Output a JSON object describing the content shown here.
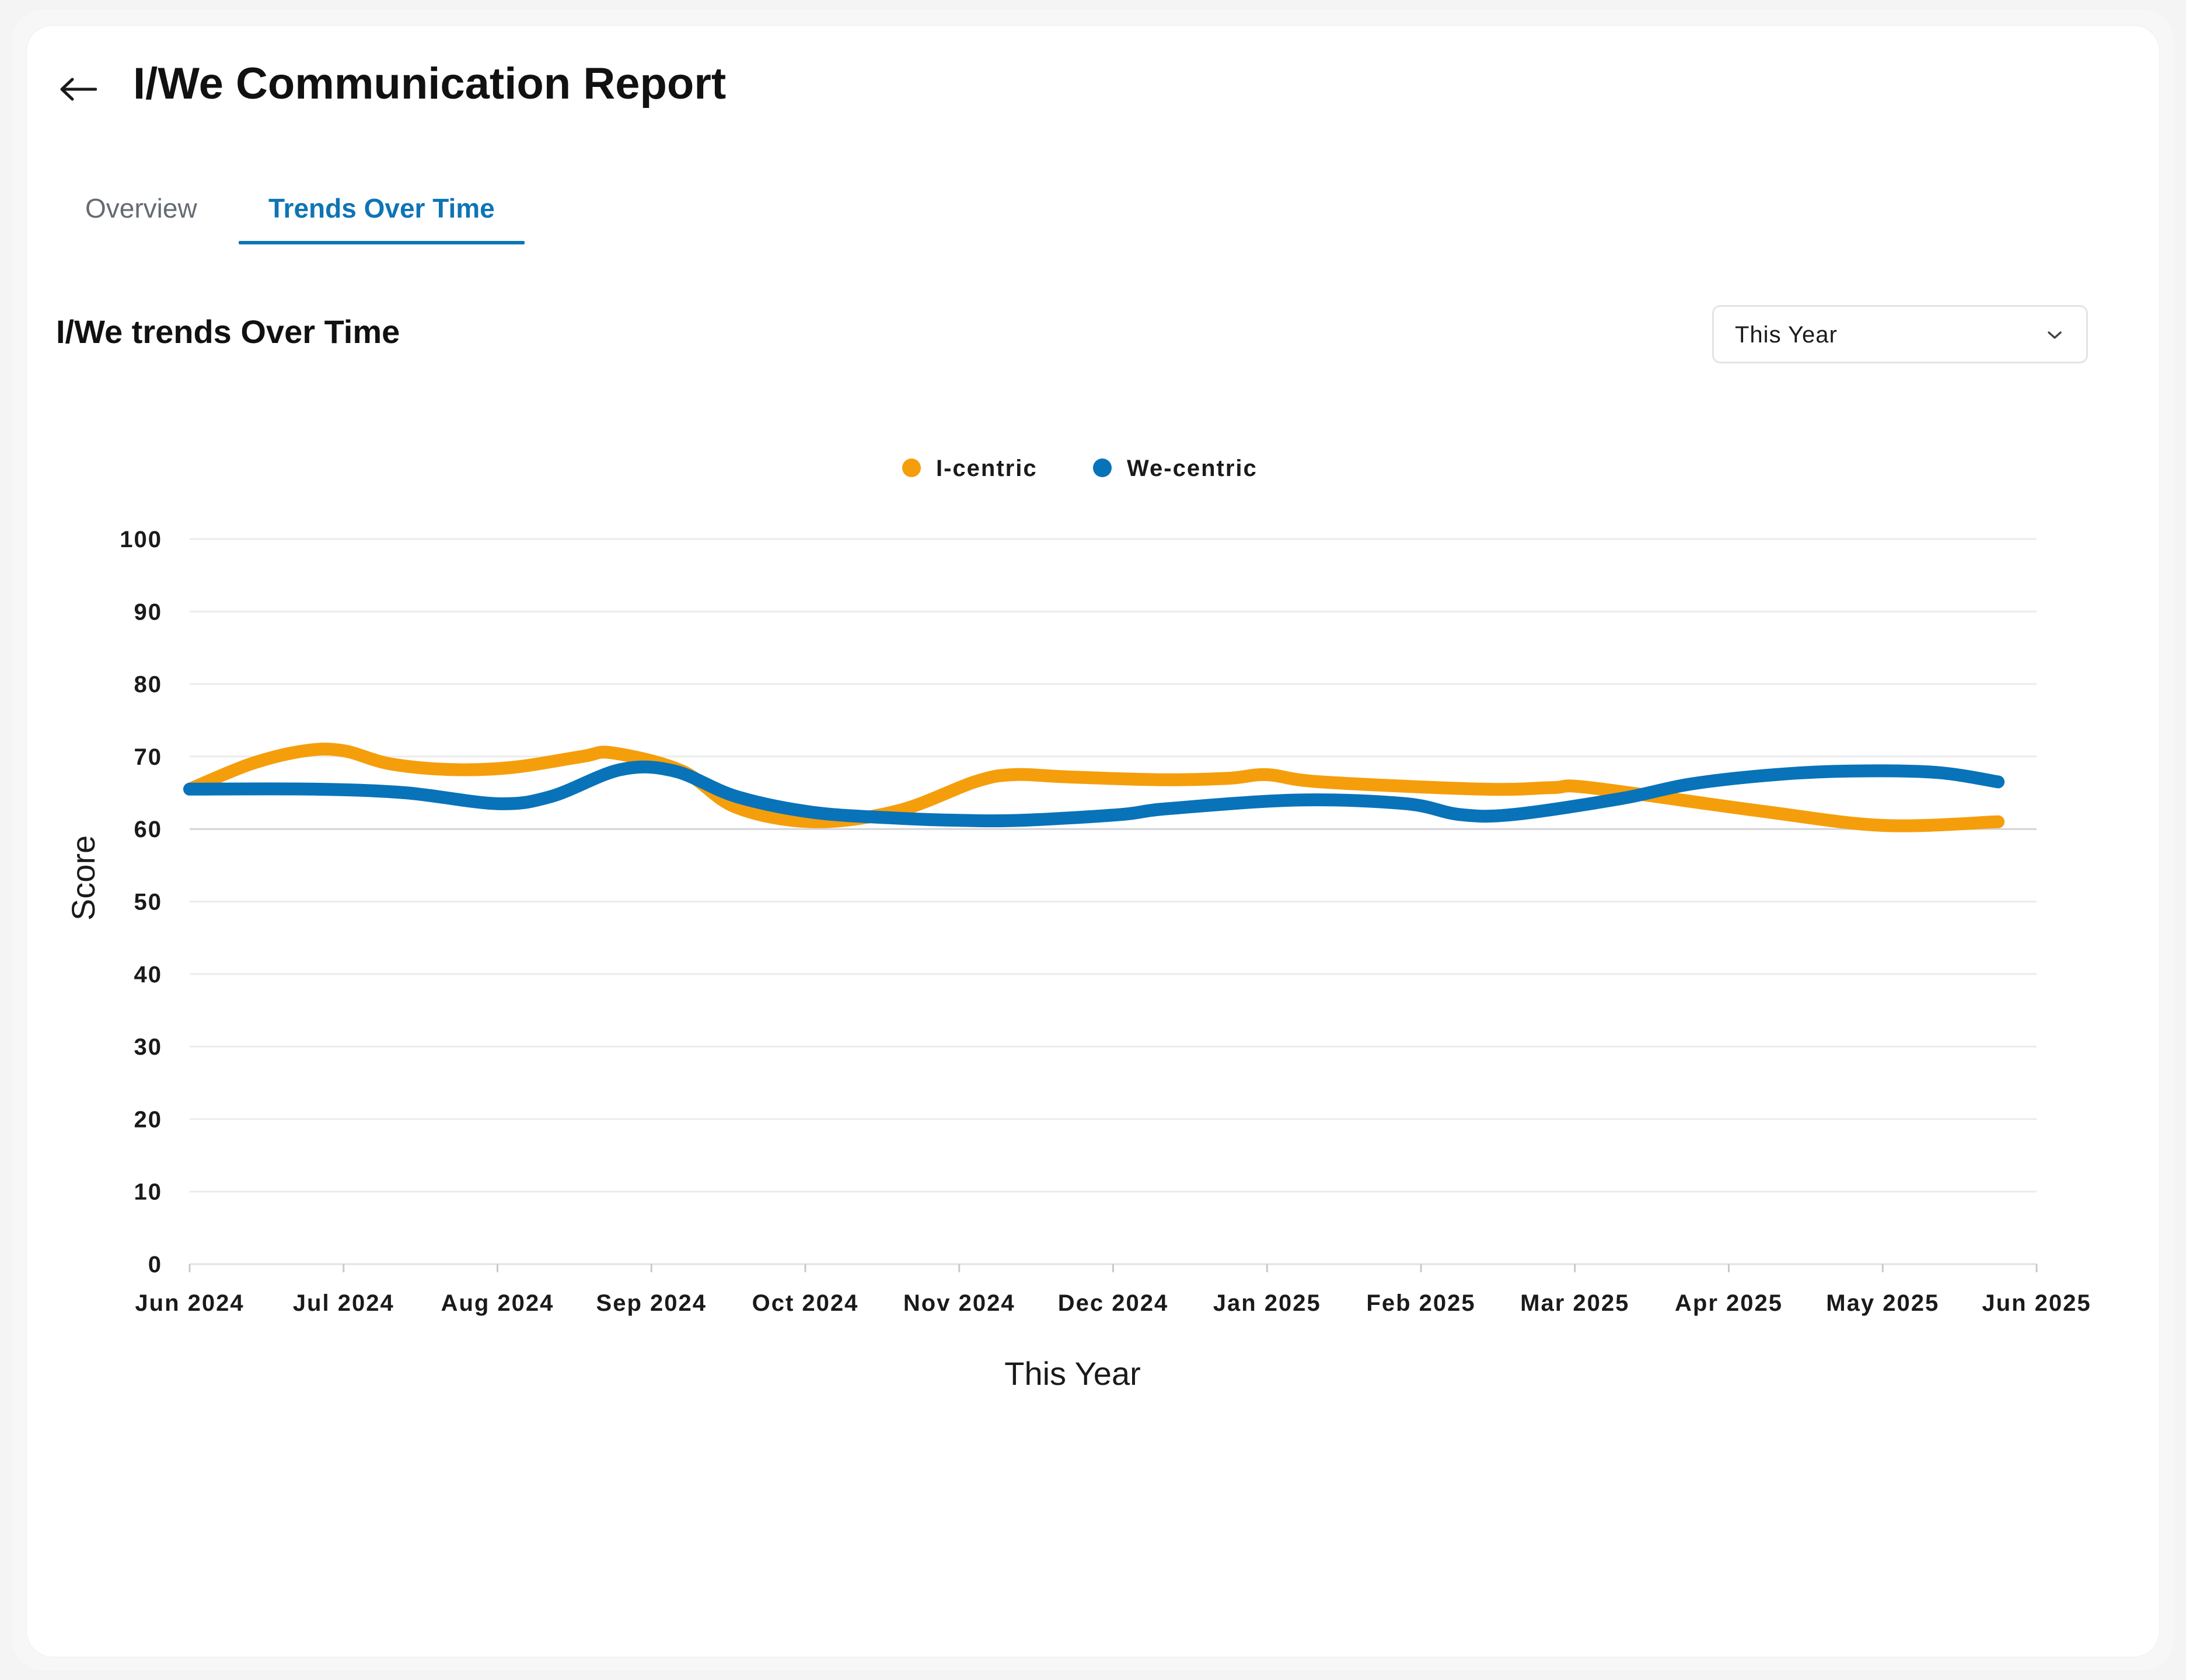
{
  "header": {
    "title": "I/We Communication Report",
    "back_icon": "arrow-left-icon"
  },
  "tabs": [
    {
      "label": "Overview",
      "active": false
    },
    {
      "label": "Trends Over Time",
      "active": true
    }
  ],
  "section": {
    "title": "I/We trends Over Time",
    "period_select": {
      "value": "This Year",
      "icon": "chevron-down-icon"
    }
  },
  "colors": {
    "accent": "#0e74b5",
    "i_centric": "#f59e0b",
    "we_centric": "#0873b9"
  },
  "chart_data": {
    "type": "line",
    "title": "",
    "xlabel": "This Year",
    "ylabel": "Score",
    "ylim": [
      0,
      100
    ],
    "yticks": [
      0,
      10,
      20,
      30,
      40,
      50,
      60,
      70,
      80,
      90,
      100
    ],
    "categories": [
      "Jun 2024",
      "Jul 2024",
      "Aug 2024",
      "Sep 2024",
      "Oct 2024",
      "Nov 2024",
      "Dec  2024",
      "Jan 2025",
      "Feb 2025",
      "Mar 2025",
      "Apr 2025",
      "May 2025",
      "Jun 2025"
    ],
    "x_domain": [
      0,
      12
    ],
    "legend": {
      "position": "top-center"
    },
    "series": [
      {
        "name": "I-centric",
        "color": "#f59e0b",
        "x": [
          0,
          0.4,
          0.75,
          1.0,
          1.3,
          1.7,
          2.1,
          2.55,
          2.75,
          3.2,
          3.55,
          4.05,
          4.6,
          5.1,
          5.35,
          5.7,
          6.3,
          6.75,
          7.0,
          7.35,
          8.4,
          8.85,
          9.1,
          10.2,
          11.0,
          11.75
        ],
        "values": [
          65.5,
          69,
          70.8,
          70.8,
          69,
          68.2,
          68.5,
          70,
          70.5,
          68,
          63,
          61,
          62.5,
          66.5,
          67.5,
          67.2,
          66.8,
          67,
          67.5,
          66.5,
          65.5,
          65.7,
          65.7,
          62.5,
          60.5,
          61
        ]
      },
      {
        "name": "We-centric",
        "color": "#0873b9",
        "x": [
          0,
          0.8,
          1.4,
          2.0,
          2.35,
          2.8,
          3.15,
          3.55,
          4.05,
          4.6,
          5.0,
          5.4,
          6.05,
          6.35,
          7.2,
          7.9,
          8.25,
          8.6,
          9.3,
          9.75,
          10.3,
          10.8,
          11.35,
          11.75
        ],
        "values": [
          65.5,
          65.5,
          65,
          63.5,
          64.5,
          68.2,
          68,
          64.5,
          62.3,
          61.5,
          61.2,
          61.2,
          62,
          62.8,
          64,
          63.5,
          62,
          62,
          64.2,
          66.2,
          67.5,
          68,
          67.8,
          66.5
        ]
      }
    ]
  }
}
